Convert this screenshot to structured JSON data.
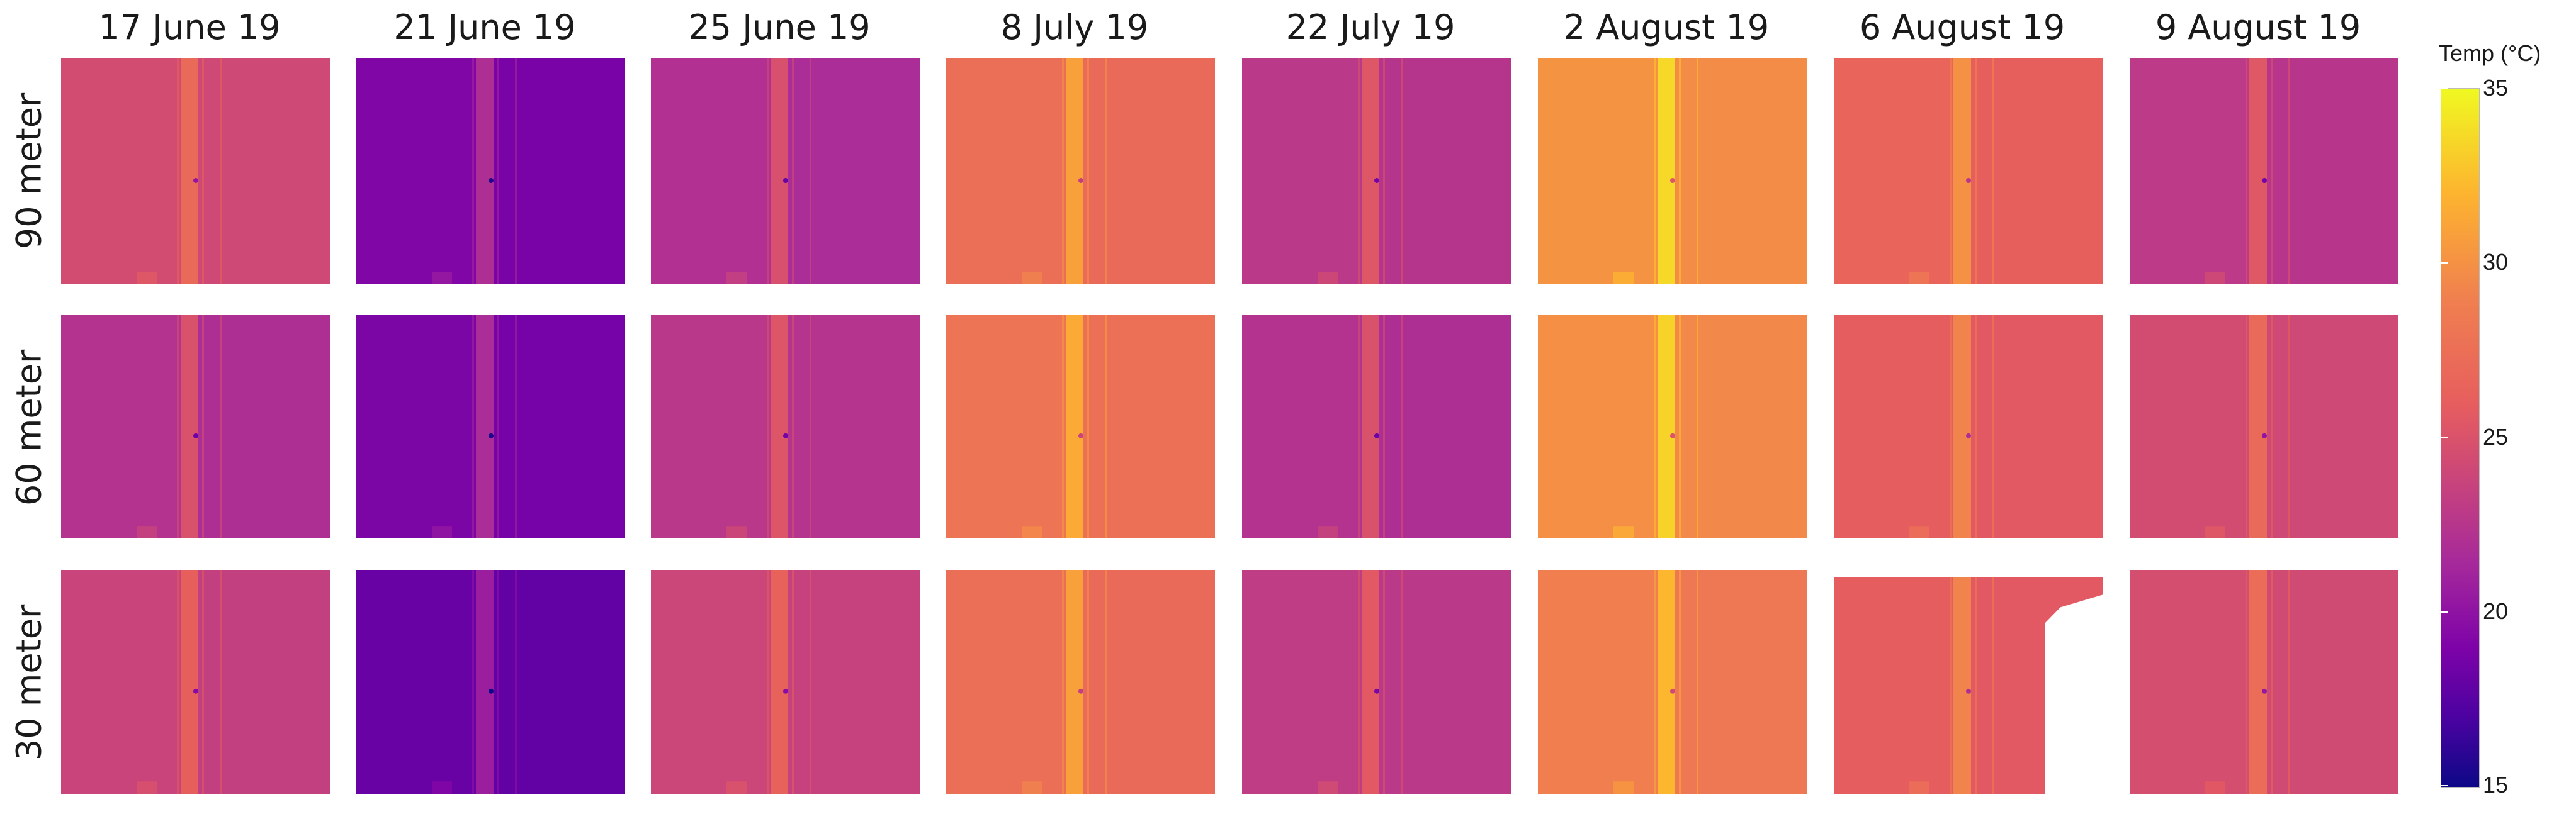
{
  "columns": [
    "17 June 19",
    "21 June 19",
    "25 June 19",
    "8 July 19",
    "22 July 19",
    "2 August 19",
    "6 August 19",
    "9 August 19"
  ],
  "rows": [
    "90 meter",
    "60 meter",
    "30 meter"
  ],
  "legend": {
    "title": "Temp (°C)",
    "ticks": [
      "35",
      "30",
      "25",
      "20",
      "15"
    ],
    "min": 15,
    "max": 35,
    "colors": [
      "#0d0887",
      "#4c02a1",
      "#7e03a8",
      "#a6299b",
      "#cc4778",
      "#e75e5e",
      "#f0804f",
      "#fdb42f",
      "#f0f921"
    ]
  },
  "panels": [
    {
      "date": "17 June 19",
      "altitude": "90 meter",
      "mean_temp": 25.2
    },
    {
      "date": "21 June 19",
      "altitude": "90 meter",
      "mean_temp": 19.8
    },
    {
      "date": "25 June 19",
      "altitude": "90 meter",
      "mean_temp": 22.8
    },
    {
      "date": "8 July 19",
      "altitude": "90 meter",
      "mean_temp": 28.4
    },
    {
      "date": "22 July 19",
      "altitude": "90 meter",
      "mean_temp": 23.5
    },
    {
      "date": "2 August 19",
      "altitude": "90 meter",
      "mean_temp": 30.6
    },
    {
      "date": "6 August 19",
      "altitude": "90 meter",
      "mean_temp": 27.6
    },
    {
      "date": "9 August 19",
      "altitude": "90 meter",
      "mean_temp": 23.6
    },
    {
      "date": "17 June 19",
      "altitude": "60 meter",
      "mean_temp": 23.0
    },
    {
      "date": "21 June 19",
      "altitude": "60 meter",
      "mean_temp": 19.6
    },
    {
      "date": "25 June 19",
      "altitude": "60 meter",
      "mean_temp": 23.4
    },
    {
      "date": "8 July 19",
      "altitude": "60 meter",
      "mean_temp": 28.8
    },
    {
      "date": "22 July 19",
      "altitude": "60 meter",
      "mean_temp": 23.0
    },
    {
      "date": "2 August 19",
      "altitude": "60 meter",
      "mean_temp": 30.4
    },
    {
      "date": "6 August 19",
      "altitude": "60 meter",
      "mean_temp": 27.0
    },
    {
      "date": "9 August 19",
      "altitude": "60 meter",
      "mean_temp": 25.2
    },
    {
      "date": "17 June 19",
      "altitude": "30 meter",
      "mean_temp": 24.4
    },
    {
      "date": "21 June 19",
      "altitude": "30 meter",
      "mean_temp": 18.6
    },
    {
      "date": "25 June 19",
      "altitude": "30 meter",
      "mean_temp": 24.6
    },
    {
      "date": "8 July 19",
      "altitude": "30 meter",
      "mean_temp": 28.4
    },
    {
      "date": "22 July 19",
      "altitude": "30 meter",
      "mean_temp": 23.8
    },
    {
      "date": "2 August 19",
      "altitude": "30 meter",
      "mean_temp": 29.4
    },
    {
      "date": "6 August 19",
      "altitude": "30 meter",
      "mean_temp": 27.0
    },
    {
      "date": "9 August 19",
      "altitude": "30 meter",
      "mean_temp": 25.4
    }
  ]
}
